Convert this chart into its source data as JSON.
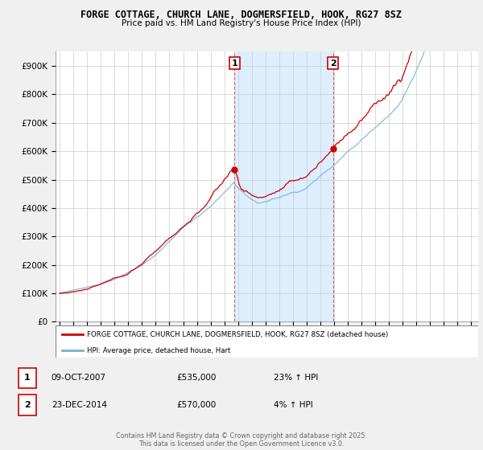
{
  "title_line1": "FORGE COTTAGE, CHURCH LANE, DOGMERSFIELD, HOOK, RG27 8SZ",
  "title_line2": "Price paid vs. HM Land Registry's House Price Index (HPI)",
  "ylim": [
    0,
    950000
  ],
  "yticks": [
    0,
    100000,
    200000,
    300000,
    400000,
    500000,
    600000,
    700000,
    800000,
    900000
  ],
  "ytick_labels": [
    "£0",
    "£100K",
    "£200K",
    "£300K",
    "£400K",
    "£500K",
    "£600K",
    "£700K",
    "£800K",
    "£900K"
  ],
  "color_red": "#cc0000",
  "color_blue": "#7aaed4",
  "color_shaded": "#ddeeff",
  "legend_red": "FORGE COTTAGE, CHURCH LANE, DOGMERSFIELD, HOOK, RG27 8SZ (detached house)",
  "legend_blue": "HPI: Average price, detached house, Hart",
  "annotation1_date": "09-OCT-2007",
  "annotation1_price": "£535,000",
  "annotation1_hpi": "23% ↑ HPI",
  "annotation2_date": "23-DEC-2014",
  "annotation2_price": "£570,000",
  "annotation2_hpi": "4% ↑ HPI",
  "footer": "Contains HM Land Registry data © Crown copyright and database right 2025.\nThis data is licensed under the Open Government Licence v3.0.",
  "bg_color": "#f0f0f0"
}
